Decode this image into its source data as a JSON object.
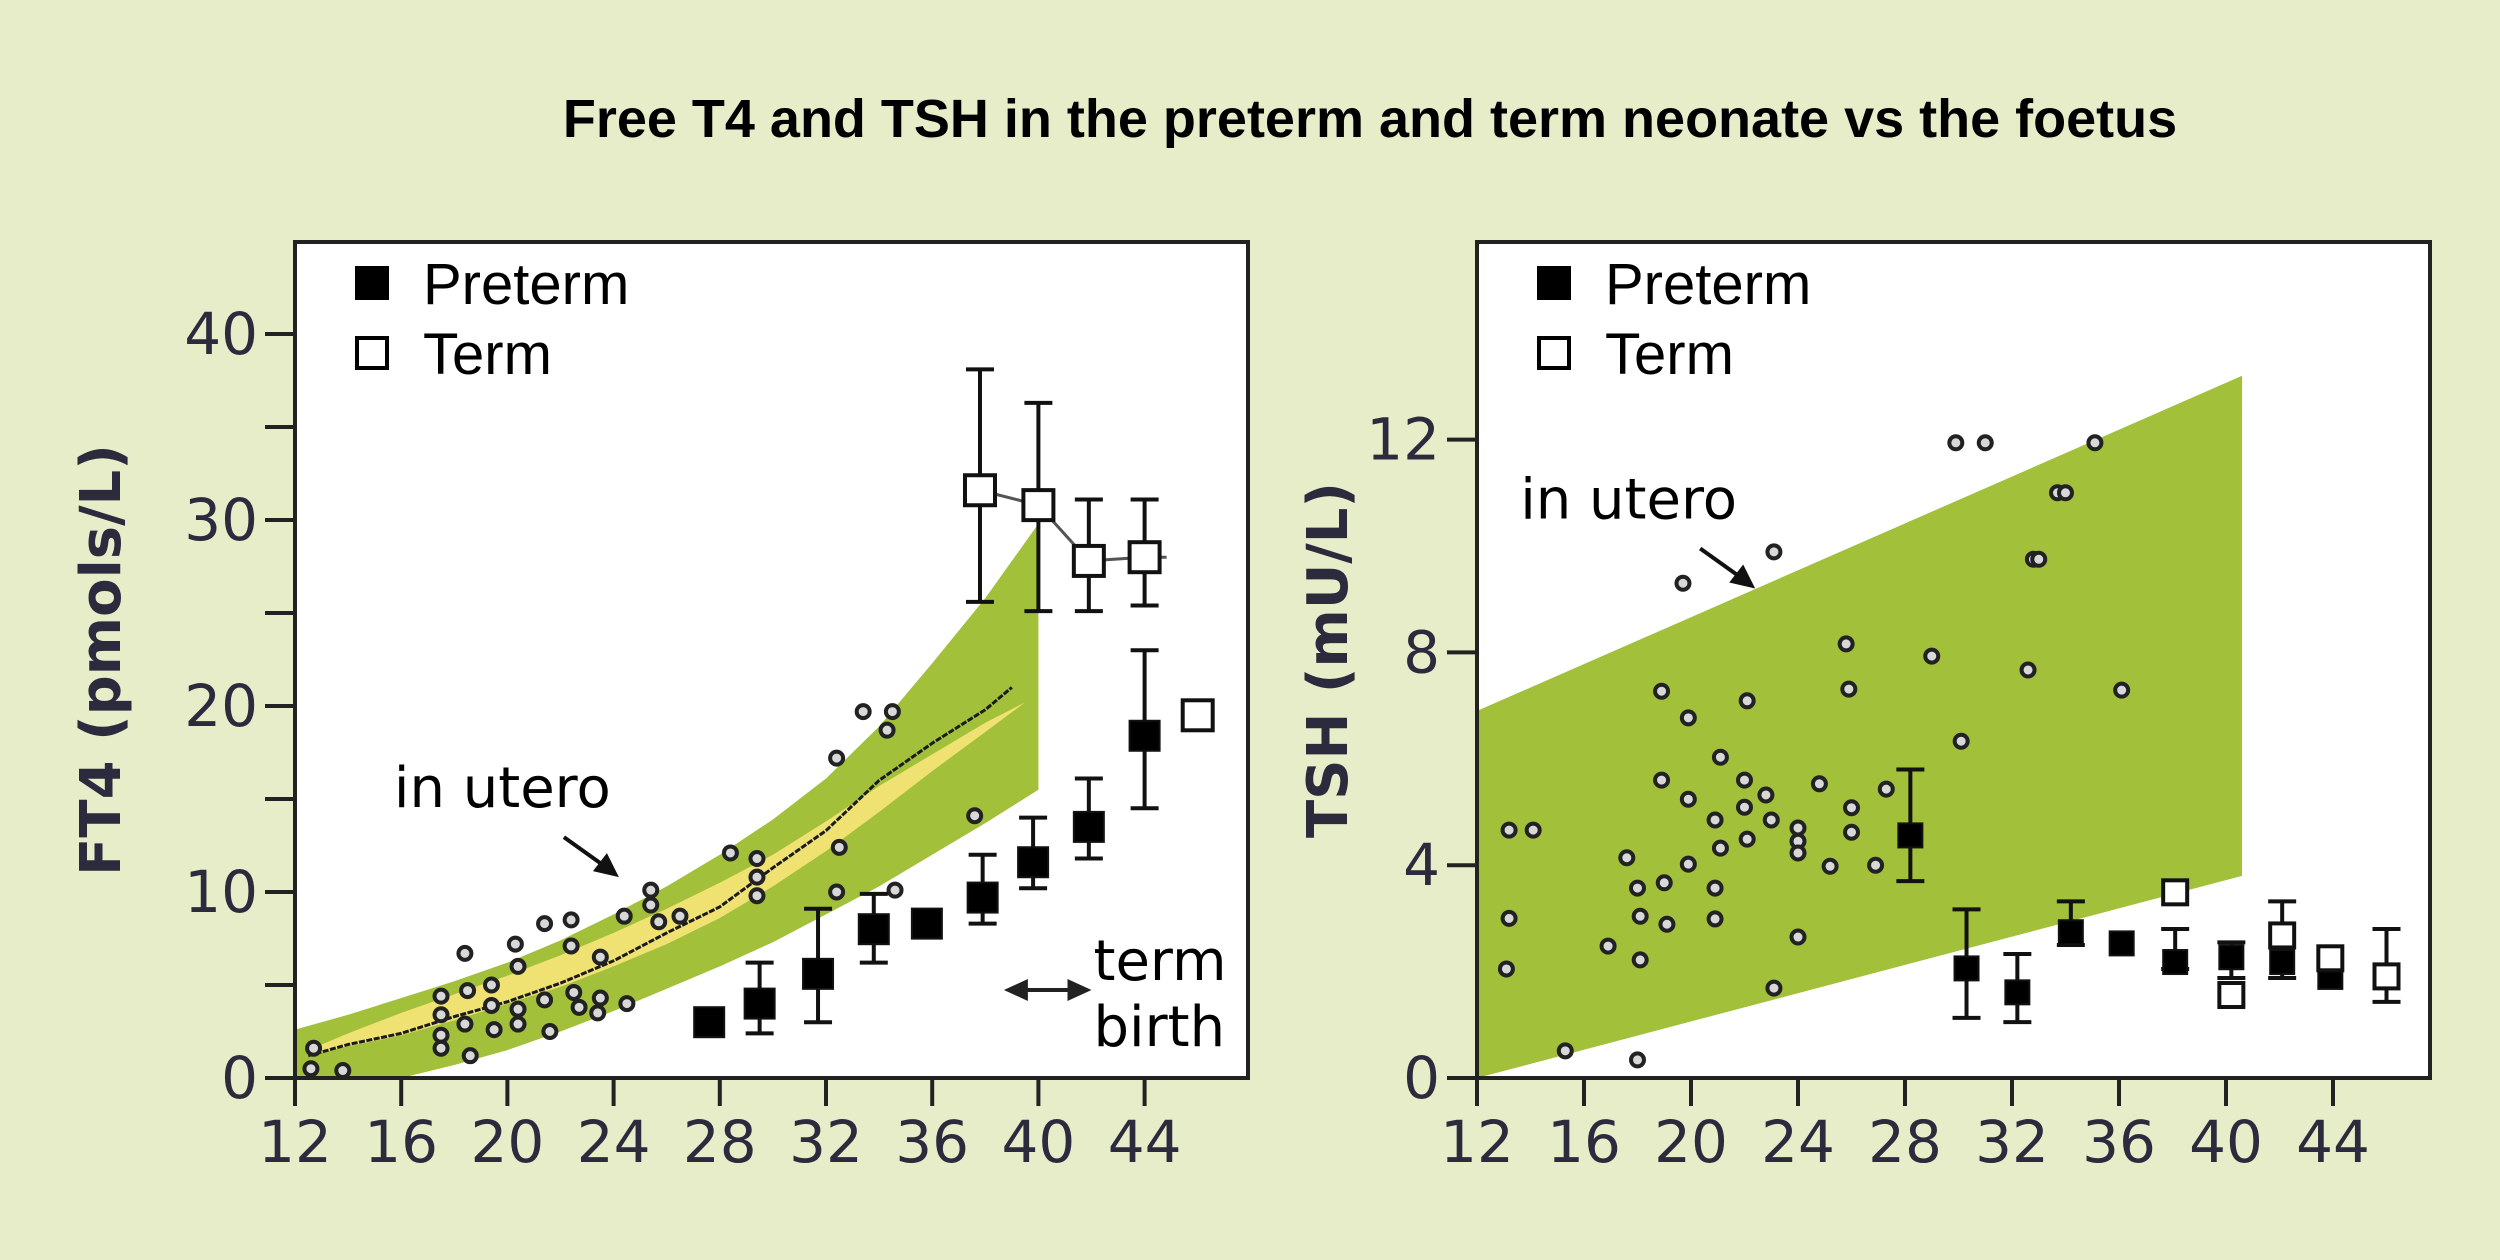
{
  "title": "Free T4 and TSH in the preterm and term neonate vs the foetus",
  "colors": {
    "background": "#e7edc9",
    "band_green": "#a2c03a",
    "band_yellow": "#f0e272",
    "preterm": "#000000",
    "term_fill": "#ffffff",
    "axis_text": "#2b2b3d"
  },
  "chart_data": [
    {
      "type": "scatter",
      "id": "ft4",
      "title": "",
      "xlabel": "",
      "ylabel": "FT4 (pmols/L)",
      "xlim": [
        12,
        47
      ],
      "ylim": [
        0,
        45
      ],
      "x_ticks": [
        12,
        16,
        20,
        24,
        28,
        32,
        36,
        40,
        44
      ],
      "y_ticks": [
        0,
        5,
        10,
        15,
        20,
        25,
        30,
        35,
        40
      ],
      "y_tick_labels": [
        "0",
        "",
        "10",
        "",
        "20",
        "",
        "30",
        "",
        "40"
      ],
      "grid": false,
      "legend": {
        "position": "top-left",
        "entries": [
          {
            "label": "Preterm",
            "marker": "filled-square"
          },
          {
            "label": "Term",
            "marker": "open-square"
          }
        ]
      },
      "annotations": [
        {
          "text": "in utero",
          "arrow_to": [
            24.2,
            10.8
          ]
        },
        {
          "text": "term",
          "line2": "birth",
          "double_arrow_x": [
            38.7,
            42
          ]
        }
      ],
      "band_outer": {
        "x": [
          12,
          14,
          16,
          18,
          20,
          22,
          24,
          26,
          28,
          30,
          32,
          34,
          36,
          38,
          40
        ],
        "upper": [
          2.6,
          3.4,
          4.3,
          5.2,
          6.2,
          7.4,
          8.8,
          10.3,
          12.0,
          13.9,
          16.1,
          18.9,
          22.3,
          25.8,
          29.8
        ],
        "lower": [
          0.0,
          0.0,
          0.0,
          0.7,
          1.5,
          2.5,
          3.6,
          4.8,
          6.0,
          7.3,
          8.8,
          10.3,
          12.0,
          13.7,
          15.5
        ]
      },
      "band_inner": {
        "x": [
          12.5,
          14,
          16,
          18,
          20,
          22,
          24,
          26,
          28,
          30,
          32,
          34,
          36,
          38,
          39.5
        ],
        "upper": [
          1.5,
          2.4,
          3.5,
          4.5,
          5.5,
          6.6,
          7.8,
          9.1,
          10.5,
          12.0,
          13.8,
          15.7,
          17.4,
          19.1,
          20.2
        ],
        "lower": [
          1.2,
          1.7,
          2.3,
          3.1,
          4.0,
          4.9,
          6.0,
          7.2,
          8.6,
          10.3,
          12.2,
          14.3,
          16.5,
          18.6,
          20.2
        ]
      },
      "median_curve": {
        "x": [
          12.5,
          14,
          16,
          18,
          20,
          22,
          24,
          26,
          28,
          30,
          32,
          34,
          36,
          38,
          39
        ],
        "y": [
          1.2,
          1.8,
          2.4,
          3.3,
          4.1,
          5.1,
          6.3,
          7.8,
          9.2,
          11.3,
          13.3,
          16.0,
          18.0,
          19.8,
          21.0
        ]
      },
      "in_utero_points": [
        [
          12.7,
          1.6
        ],
        [
          12.6,
          0.5
        ],
        [
          13.8,
          0.4
        ],
        [
          17.5,
          4.4
        ],
        [
          17.5,
          3.4
        ],
        [
          17.5,
          2.3
        ],
        [
          17.5,
          1.6
        ],
        [
          18.4,
          6.7
        ],
        [
          18.5,
          4.7
        ],
        [
          18.4,
          2.9
        ],
        [
          18.6,
          1.2
        ],
        [
          19.4,
          5.0
        ],
        [
          19.4,
          3.9
        ],
        [
          19.5,
          2.6
        ],
        [
          20.3,
          7.2
        ],
        [
          20.4,
          6.0
        ],
        [
          20.4,
          3.7
        ],
        [
          20.4,
          2.9
        ],
        [
          21.4,
          8.3
        ],
        [
          21.4,
          4.2
        ],
        [
          21.6,
          2.5
        ],
        [
          22.4,
          8.5
        ],
        [
          22.4,
          7.1
        ],
        [
          22.5,
          4.6
        ],
        [
          22.7,
          3.8
        ],
        [
          23.5,
          6.5
        ],
        [
          23.5,
          4.3
        ],
        [
          23.4,
          3.5
        ],
        [
          24.4,
          8.7
        ],
        [
          24.5,
          4.0
        ],
        [
          25.4,
          10.1
        ],
        [
          25.4,
          9.3
        ],
        [
          25.7,
          8.4
        ],
        [
          26.5,
          8.7
        ],
        [
          28.4,
          12.1
        ],
        [
          29.4,
          11.8
        ],
        [
          29.4,
          10.8
        ],
        [
          29.4,
          9.8
        ],
        [
          32.4,
          17.2
        ],
        [
          32.5,
          12.4
        ],
        [
          32.4,
          10.0
        ],
        [
          33.4,
          19.7
        ],
        [
          34.5,
          19.7
        ],
        [
          34.3,
          18.7
        ],
        [
          34.6,
          10.1
        ],
        [
          37.6,
          14.1
        ]
      ],
      "series": [
        {
          "name": "Preterm",
          "marker": "filled-square",
          "points": [
            {
              "x": 27.6,
              "y": 3.0
            },
            {
              "x": 29.5,
              "y": 4.0,
              "err_low": 2.4,
              "err_high": 6.2
            },
            {
              "x": 31.7,
              "y": 5.6,
              "err_low": 3.0,
              "err_high": 9.1
            },
            {
              "x": 33.8,
              "y": 8.0,
              "err_low": 6.2,
              "err_high": 9.9
            },
            {
              "x": 35.8,
              "y": 8.3
            },
            {
              "x": 37.9,
              "y": 9.7,
              "err_low": 8.3,
              "err_high": 12.0
            },
            {
              "x": 39.8,
              "y": 11.6,
              "err_low": 10.2,
              "err_high": 14.0
            },
            {
              "x": 41.9,
              "y": 13.5,
              "err_low": 11.8,
              "err_high": 16.1
            },
            {
              "x": 44.0,
              "y": 18.4,
              "err_low": 14.5,
              "err_high": 23.0
            }
          ]
        },
        {
          "name": "Term",
          "marker": "open-square",
          "connect": true,
          "points": [
            {
              "x": 37.8,
              "y": 31.6,
              "err_low": 25.6,
              "err_high": 38.1
            },
            {
              "x": 40.0,
              "y": 30.8,
              "err_low": 25.1,
              "err_high": 36.3
            },
            {
              "x": 41.9,
              "y": 27.8,
              "err_low": 25.1,
              "err_high": 31.1
            },
            {
              "x": 44.0,
              "y": 28.0,
              "err_low": 25.4,
              "err_high": 31.1
            },
            {
              "x": 46.0,
              "y": 19.5
            }
          ]
        }
      ]
    },
    {
      "type": "scatter",
      "id": "tsh",
      "title": "",
      "xlabel": "",
      "ylabel": "TSH (mU/L)",
      "xlim": [
        12,
        47
      ],
      "ylim": [
        0,
        15.7
      ],
      "x_ticks": [
        12,
        16,
        20,
        24,
        28,
        32,
        36,
        40,
        44
      ],
      "y_ticks": [
        0,
        4,
        8,
        12
      ],
      "y_tick_labels": [
        "0",
        "4",
        "8",
        "12"
      ],
      "grid": false,
      "legend": {
        "position": "top-left",
        "entries": [
          {
            "label": "Preterm",
            "marker": "filled-square"
          },
          {
            "label": "Term",
            "marker": "open-square"
          }
        ]
      },
      "annotations": [
        {
          "text": "in utero",
          "arrow_to": [
            22.4,
            9.2
          ]
        }
      ],
      "band": {
        "x": [
          12,
          40.6
        ],
        "upper": [
          6.9,
          13.2
        ],
        "lower": [
          0.0,
          3.8
        ]
      },
      "in_utero_points": [
        [
          13.2,
          4.66
        ],
        [
          14.1,
          4.66
        ],
        [
          13.2,
          3.0
        ],
        [
          13.1,
          2.05
        ],
        [
          15.3,
          0.51
        ],
        [
          18.0,
          0.34
        ],
        [
          16.9,
          2.48
        ],
        [
          18.1,
          2.22
        ],
        [
          17.6,
          4.14
        ],
        [
          18.0,
          3.57
        ],
        [
          18.1,
          3.04
        ],
        [
          19.0,
          3.67
        ],
        [
          19.1,
          2.89
        ],
        [
          18.9,
          7.27
        ],
        [
          18.9,
          5.6
        ],
        [
          19.9,
          6.77
        ],
        [
          19.9,
          5.24
        ],
        [
          19.9,
          4.02
        ],
        [
          21.1,
          6.03
        ],
        [
          20.9,
          4.85
        ],
        [
          21.1,
          4.32
        ],
        [
          20.9,
          3.57
        ],
        [
          20.9,
          2.99
        ],
        [
          22.1,
          7.09
        ],
        [
          22.0,
          5.6
        ],
        [
          22.0,
          5.09
        ],
        [
          22.1,
          4.49
        ],
        [
          22.8,
          5.32
        ],
        [
          23.0,
          4.85
        ],
        [
          23.1,
          1.69
        ],
        [
          24.0,
          4.7
        ],
        [
          24.0,
          4.45
        ],
        [
          24.0,
          4.23
        ],
        [
          24.0,
          2.65
        ],
        [
          24.8,
          5.53
        ],
        [
          25.2,
          3.98
        ],
        [
          25.8,
          8.16
        ],
        [
          25.9,
          7.31
        ],
        [
          26.0,
          5.08
        ],
        [
          26.0,
          4.62
        ],
        [
          26.9,
          4.0
        ],
        [
          27.3,
          5.43
        ],
        [
          29.0,
          7.93
        ],
        [
          30.1,
          6.33
        ],
        [
          19.7,
          9.3
        ],
        [
          23.1,
          9.89
        ],
        [
          29.9,
          11.94
        ],
        [
          31.0,
          11.94
        ],
        [
          35.1,
          11.94
        ],
        [
          33.7,
          11.0
        ],
        [
          34.0,
          11.0
        ],
        [
          32.8,
          9.75
        ],
        [
          33.0,
          9.75
        ],
        [
          32.6,
          7.67
        ],
        [
          36.1,
          7.29
        ]
      ],
      "series": [
        {
          "name": "Preterm",
          "marker": "filled-square",
          "points": [
            {
              "x": 28.2,
              "y": 4.56,
              "err_low": 3.7,
              "err_high": 5.8
            },
            {
              "x": 30.3,
              "y": 2.06,
              "err_low": 1.13,
              "err_high": 3.17
            },
            {
              "x": 32.2,
              "y": 1.61,
              "err_low": 1.05,
              "err_high": 2.33
            },
            {
              "x": 34.2,
              "y": 2.74,
              "err_low": 2.5,
              "err_high": 3.32
            },
            {
              "x": 36.1,
              "y": 2.53
            },
            {
              "x": 38.1,
              "y": 2.18,
              "err_low": 2.05,
              "err_high": 2.8
            },
            {
              "x": 40.2,
              "y": 2.27,
              "err_low": 1.88,
              "err_high": 2.55
            },
            {
              "x": 42.1,
              "y": 2.18,
              "err_low": 1.88,
              "err_high": 3.32
            },
            {
              "x": 43.9,
              "y": 1.9
            }
          ]
        },
        {
          "name": "Term",
          "marker": "open-square",
          "points": [
            {
              "x": 38.1,
              "y": 3.49
            },
            {
              "x": 40.2,
              "y": 1.56
            },
            {
              "x": 42.1,
              "y": 2.68
            },
            {
              "x": 43.9,
              "y": 2.25
            },
            {
              "x": 46.0,
              "y": 1.91,
              "err_low": 1.43,
              "err_high": 2.8
            }
          ]
        }
      ]
    }
  ]
}
